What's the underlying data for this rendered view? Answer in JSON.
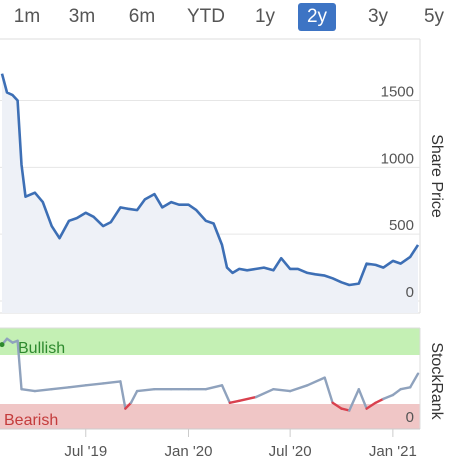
{
  "range_buttons": [
    {
      "label": "1m",
      "active": false
    },
    {
      "label": "3m",
      "active": false
    },
    {
      "label": "6m",
      "active": false
    },
    {
      "label": "YTD",
      "active": false
    },
    {
      "label": "1y",
      "active": false
    },
    {
      "label": "2y",
      "active": true
    },
    {
      "label": "3y",
      "active": false
    },
    {
      "label": "5y",
      "active": false
    }
  ],
  "colors": {
    "accent": "#3d74c4",
    "price_line": "#3d6fb5",
    "price_area": "#eef1f7",
    "bullish_zone": "#c4f0b4",
    "bearish_zone": "#f0c6c6",
    "bullish_text": "#2e8a2e",
    "bearish_text": "#c43c3c",
    "rank_line": "#8fa2bd",
    "rank_bearish_line": "#d9414e"
  },
  "chart_data": [
    {
      "type": "area",
      "name": "share-price",
      "ylabel": "Share Price",
      "ylim": [
        0,
        1900
      ],
      "yticks": [
        "0",
        "500",
        "1000",
        "1500"
      ],
      "xtick_labels": [
        "Jul '19",
        "Jan '20",
        "Jul '20",
        "Jan '21"
      ],
      "x": [
        "2019-02-01",
        "2019-02-10",
        "2019-02-20",
        "2019-03-01",
        "2019-03-08",
        "2019-03-15",
        "2019-04-01",
        "2019-04-15",
        "2019-05-01",
        "2019-05-15",
        "2019-06-01",
        "2019-06-15",
        "2019-07-01",
        "2019-07-15",
        "2019-08-01",
        "2019-08-15",
        "2019-09-01",
        "2019-09-15",
        "2019-10-01",
        "2019-10-15",
        "2019-11-01",
        "2019-11-15",
        "2019-12-01",
        "2019-12-15",
        "2020-01-01",
        "2020-01-15",
        "2020-02-01",
        "2020-02-15",
        "2020-03-01",
        "2020-03-10",
        "2020-03-20",
        "2020-04-01",
        "2020-04-15",
        "2020-05-01",
        "2020-05-15",
        "2020-06-01",
        "2020-06-15",
        "2020-07-01",
        "2020-07-15",
        "2020-08-01",
        "2020-08-15",
        "2020-09-01",
        "2020-09-15",
        "2020-10-01",
        "2020-10-15",
        "2020-11-01",
        "2020-11-15",
        "2020-12-01",
        "2020-12-15",
        "2021-01-01",
        "2021-01-15",
        "2021-02-01",
        "2021-02-15"
      ],
      "values": [
        1700,
        1560,
        1540,
        1500,
        1020,
        780,
        810,
        740,
        560,
        470,
        600,
        620,
        660,
        630,
        560,
        590,
        700,
        690,
        680,
        760,
        800,
        700,
        740,
        720,
        720,
        680,
        600,
        580,
        420,
        250,
        210,
        240,
        230,
        240,
        250,
        230,
        320,
        240,
        240,
        210,
        200,
        190,
        170,
        140,
        120,
        130,
        280,
        270,
        250,
        300,
        280,
        330,
        420
      ]
    },
    {
      "type": "line",
      "name": "stockrank",
      "ylabel": "StockRank",
      "ylim": [
        0,
        100
      ],
      "yticks": [
        "0"
      ],
      "zones": [
        {
          "label": "Bullish",
          "from": 70,
          "to": 100
        },
        {
          "label": "Bearish",
          "from": 0,
          "to": 30
        }
      ],
      "x": [
        "2019-02-01",
        "2019-02-10",
        "2019-02-20",
        "2019-03-01",
        "2019-03-08",
        "2019-04-01",
        "2019-05-01",
        "2019-06-01",
        "2019-07-01",
        "2019-08-01",
        "2019-09-01",
        "2019-09-10",
        "2019-09-20",
        "2019-10-01",
        "2019-11-01",
        "2019-12-01",
        "2020-01-01",
        "2020-02-01",
        "2020-03-01",
        "2020-03-15",
        "2020-04-01",
        "2020-05-01",
        "2020-06-01",
        "2020-07-01",
        "2020-08-01",
        "2020-09-01",
        "2020-09-15",
        "2020-10-01",
        "2020-10-15",
        "2020-11-01",
        "2020-11-15",
        "2020-12-01",
        "2020-12-15",
        "2021-01-01",
        "2021-01-15",
        "2021-02-01",
        "2021-02-15"
      ],
      "values": [
        86,
        92,
        88,
        90,
        40,
        38,
        40,
        42,
        44,
        46,
        48,
        20,
        26,
        38,
        40,
        40,
        40,
        40,
        44,
        26,
        28,
        32,
        40,
        38,
        44,
        52,
        26,
        20,
        18,
        40,
        20,
        26,
        30,
        34,
        40,
        42,
        56
      ]
    }
  ]
}
